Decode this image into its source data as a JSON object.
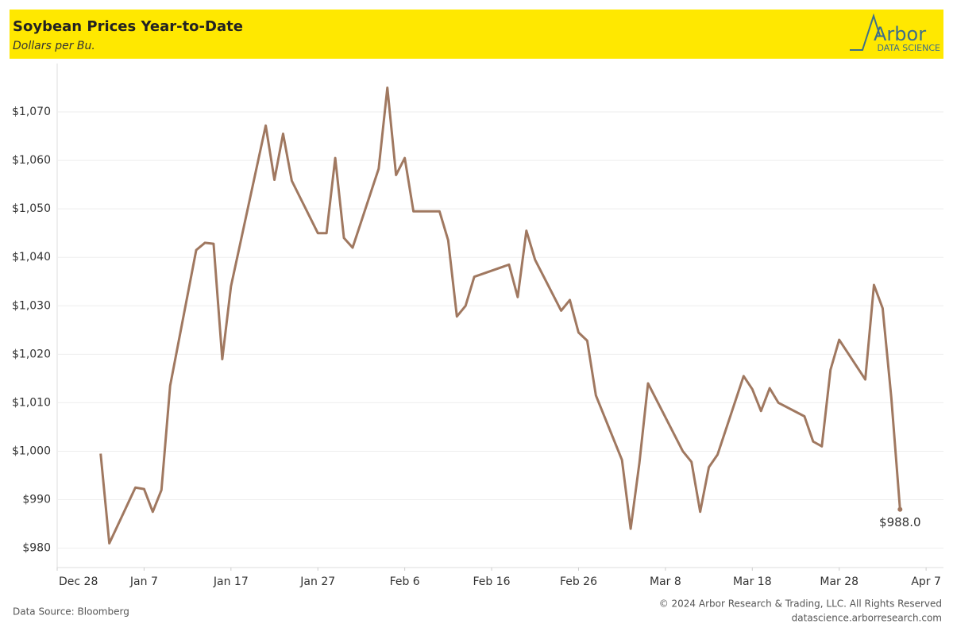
{
  "chart_data": {
    "type": "line",
    "title": "Soybean Prices Year-to-Date",
    "subtitle": "Dollars per Bu.",
    "logo": {
      "name": "Arbor",
      "tagline": "DATA SCIENCE"
    },
    "source": "Data Source: Bloomberg",
    "copyright": "© 2024 Arbor Research & Trading, LLC. All Rights Reserved",
    "website": "datascience.arborresearch.com",
    "x": [
      2,
      3,
      6,
      7,
      8,
      9,
      10,
      13,
      14,
      15,
      16,
      17,
      21,
      22,
      23,
      24,
      27,
      28,
      29,
      30,
      31,
      34,
      35,
      36,
      37,
      38,
      41,
      42,
      43,
      44,
      45,
      49,
      50,
      51,
      52,
      55,
      56,
      57,
      58,
      59,
      62,
      63,
      64,
      65,
      69,
      70,
      71,
      72,
      73,
      76,
      77,
      78,
      79,
      80,
      83,
      84,
      85,
      86,
      87,
      90,
      91,
      92,
      93,
      94
    ],
    "series": [
      {
        "color": "#a07860",
        "values": [
          999.5,
          981,
          992.5,
          992.2,
          987.5,
          992,
          1013.5,
          1041.5,
          1043,
          1042.8,
          1019,
          1034,
          1067.2,
          1056,
          1065.5,
          1055.8,
          1045,
          1045,
          1060.5,
          1044,
          1042,
          1058.3,
          1075,
          1057,
          1060.5,
          1049.5,
          1049.5,
          1043.5,
          1027.8,
          1030,
          1036,
          1038.5,
          1031.8,
          1045.5,
          1039.5,
          1029,
          1031.2,
          1024.5,
          1022.8,
          1011.5,
          998.2,
          984,
          997.5,
          1014,
          1000,
          997.8,
          987.5,
          996.7,
          999.3,
          1015.5,
          1012.8,
          1008.3,
          1013,
          1010,
          1007.2,
          1002,
          1001,
          1016.8,
          1023,
          1014.8,
          1034.3,
          1029.5,
          1011,
          988
        ],
        "value_labels": [
          null,
          null,
          null,
          null,
          null,
          null,
          null,
          null,
          null,
          null,
          null,
          null,
          null,
          null,
          null,
          null,
          null,
          null,
          null,
          null,
          null,
          null,
          null,
          null,
          null,
          null,
          null,
          null,
          null,
          null,
          null,
          null,
          null,
          null,
          null,
          null,
          null,
          null,
          null,
          null,
          null,
          null,
          null,
          null,
          null,
          null,
          null,
          null,
          null,
          null,
          null,
          null,
          null,
          null,
          null,
          null,
          null,
          null,
          null,
          null,
          null,
          null,
          null,
          "$988.0"
        ]
      }
    ],
    "xlim": [
      -3,
      99
    ],
    "xticks": [
      {
        "value": -3,
        "label": "Dec 28"
      },
      {
        "value": 7,
        "label": "Jan 7"
      },
      {
        "value": 17,
        "label": "Jan 17"
      },
      {
        "value": 27,
        "label": "Jan 27"
      },
      {
        "value": 37,
        "label": "Feb 6"
      },
      {
        "value": 47,
        "label": "Feb 16"
      },
      {
        "value": 57,
        "label": "Feb 26"
      },
      {
        "value": 67,
        "label": "Mar 8"
      },
      {
        "value": 77,
        "label": "Mar 18"
      },
      {
        "value": 87,
        "label": "Mar 28"
      },
      {
        "value": 97,
        "label": "Apr 7"
      }
    ],
    "ylim": [
      976,
      1080
    ],
    "yticks": [
      {
        "value": 980,
        "label": "$980"
      },
      {
        "value": 990,
        "label": "$990"
      },
      {
        "value": 1000,
        "label": "$1,000"
      },
      {
        "value": 1010,
        "label": "$1,010"
      },
      {
        "value": 1020,
        "label": "$1,020"
      },
      {
        "value": 1030,
        "label": "$1,030"
      },
      {
        "value": 1040,
        "label": "$1,040"
      },
      {
        "value": 1050,
        "label": "$1,050"
      },
      {
        "value": 1060,
        "label": "$1,060"
      },
      {
        "value": 1070,
        "label": "$1,070"
      }
    ],
    "grid": true
  }
}
